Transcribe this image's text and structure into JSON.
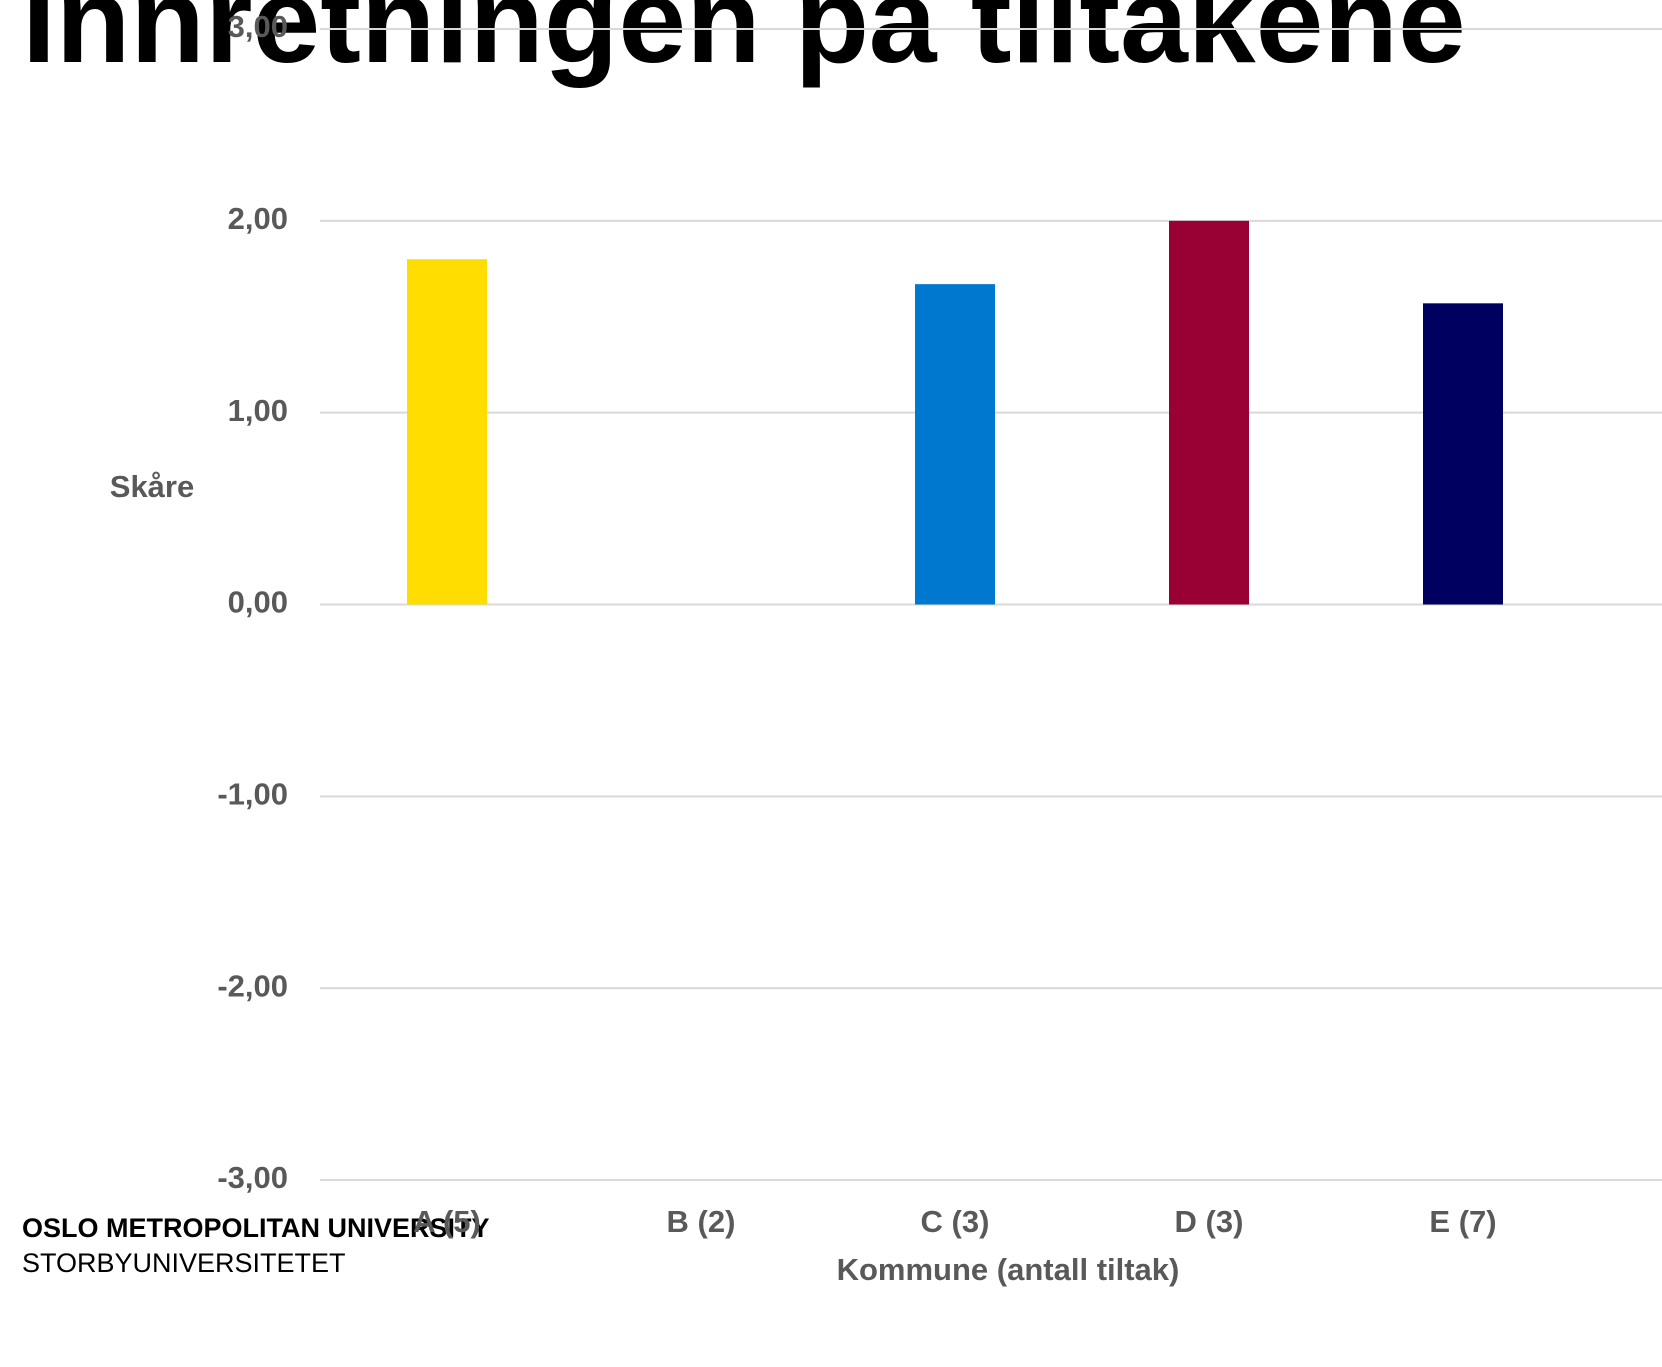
{
  "chart_data": {
    "type": "bar",
    "title": "Innretningen på tiltakene",
    "y_label": "Skåre",
    "x_label": "Kommune (antall tiltak)",
    "categories": [
      "A (5)",
      "B (2)",
      "C (3)",
      "D (3)",
      "E (7)"
    ],
    "values": [
      1.8,
      null,
      1.67,
      2.0,
      1.57
    ],
    "colors": [
      "#ffdd00",
      null,
      "#0078cf",
      "#990033",
      "#000060"
    ],
    "ylim": [
      -3,
      3
    ],
    "yticks": [
      {
        "value": -3,
        "label": "-3,00"
      },
      {
        "value": -2,
        "label": "-2,00"
      },
      {
        "value": -1,
        "label": "-1,00"
      },
      {
        "value": 0,
        "label": "0,00"
      },
      {
        "value": 1,
        "label": "1,00"
      },
      {
        "value": 2,
        "label": "2,00"
      },
      {
        "value": 3,
        "label": "3,00"
      }
    ],
    "grid": true
  },
  "logo": {
    "name": "OSLO METROPOLITAN UNIVERSITY",
    "subname": "STORBYUNIVERSITETET"
  }
}
